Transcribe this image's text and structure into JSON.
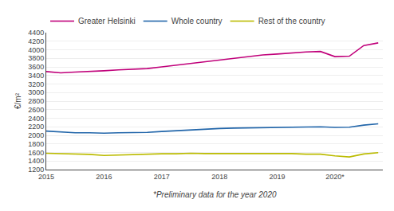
{
  "chart_data": {
    "type": "line",
    "ylabel": "€/m²",
    "annotation": "*Preliminary data for the year 2020",
    "x": [
      2015.0,
      2015.25,
      2015.5,
      2015.75,
      2016.0,
      2016.25,
      2016.5,
      2016.75,
      2017.0,
      2017.25,
      2017.5,
      2017.75,
      2018.0,
      2018.25,
      2018.5,
      2018.75,
      2019.0,
      2019.25,
      2019.5,
      2019.75,
      2020.0,
      2020.25,
      2020.5,
      2020.75
    ],
    "series": [
      {
        "name": "Greater Helsinki",
        "color": "#c0007a",
        "values": [
          3490,
          3460,
          3480,
          3490,
          3510,
          3530,
          3550,
          3560,
          3600,
          3640,
          3680,
          3720,
          3760,
          3800,
          3850,
          3880,
          3900,
          3930,
          3950,
          3960,
          3840,
          3850,
          4100,
          4160
        ]
      },
      {
        "name": "Whole country",
        "color": "#2266aa",
        "values": [
          2100,
          2080,
          2060,
          2060,
          2050,
          2060,
          2060,
          2070,
          2090,
          2110,
          2130,
          2150,
          2160,
          2170,
          2175,
          2180,
          2190,
          2200,
          2200,
          2200,
          2185,
          2190,
          2240,
          2270
        ]
      },
      {
        "name": "Rest of the country",
        "color": "#bbbb00",
        "values": [
          1580,
          1570,
          1560,
          1555,
          1530,
          1540,
          1555,
          1560,
          1570,
          1570,
          1580,
          1575,
          1575,
          1570,
          1575,
          1570,
          1570,
          1575,
          1560,
          1560,
          1520,
          1495,
          1565,
          1595
        ]
      }
    ],
    "xlim": [
      2015.0,
      2020.83
    ],
    "xticks": [
      2015,
      2016,
      2017,
      2018,
      2019,
      {
        "value": 2020,
        "label": "2020*"
      }
    ],
    "ylim": [
      1200,
      4400
    ],
    "yticks": [
      1200,
      1400,
      1600,
      1800,
      2000,
      2200,
      2400,
      2600,
      2800,
      3000,
      3200,
      3400,
      3600,
      3800,
      4000,
      4200,
      4400
    ],
    "grid": true,
    "legend": "upper left"
  }
}
